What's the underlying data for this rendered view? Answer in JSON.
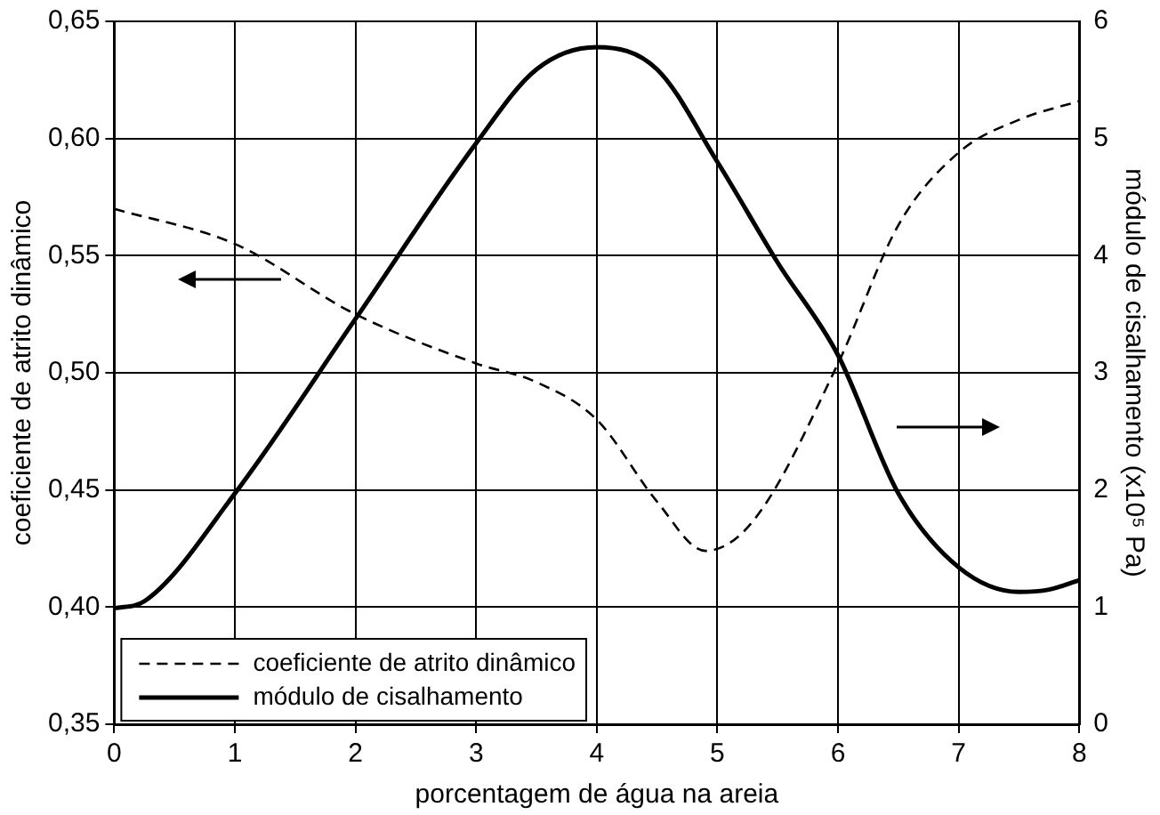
{
  "chart_data": {
    "type": "line",
    "xlabel": "porcentagem de água na areia",
    "ylabel": "coeficiente de atrito dinâmico",
    "y2label": "módulo de cisalhamento (x10⁵ Pa)",
    "xlim": [
      0,
      8
    ],
    "xticks": [
      0,
      1,
      2,
      3,
      4,
      5,
      6,
      7,
      8
    ],
    "ylim": [
      0.35,
      0.65
    ],
    "yticks": [
      {
        "value": 0.35,
        "label": "0,35"
      },
      {
        "value": 0.4,
        "label": "0,40"
      },
      {
        "value": 0.45,
        "label": "0,45"
      },
      {
        "value": 0.5,
        "label": "0,50"
      },
      {
        "value": 0.55,
        "label": "0,55"
      },
      {
        "value": 0.6,
        "label": "0,60"
      },
      {
        "value": 0.65,
        "label": "0,65"
      }
    ],
    "y2lim": [
      0,
      6
    ],
    "y2ticks": [
      0,
      1,
      2,
      3,
      4,
      5,
      6
    ],
    "grid": true,
    "legend": "bottom left",
    "marker": "none",
    "series": [
      {
        "name": "coeficiente de atrito dinâmico",
        "color": "#000000",
        "line_style": "dashed",
        "axis": "y",
        "x": [
          0,
          1,
          2,
          3,
          3.5,
          4,
          4.5,
          4.9,
          5.3,
          6,
          6.5,
          7,
          7.5,
          8
        ],
        "values": [
          0.57,
          0.555,
          0.525,
          0.504,
          0.496,
          0.48,
          0.445,
          0.424,
          0.437,
          0.504,
          0.563,
          0.594,
          0.608,
          0.616
        ]
      },
      {
        "name": "módulo de cisalhamento",
        "color": "#000000",
        "line_style": "solid",
        "axis": "y2",
        "x": [
          0,
          0.25,
          1,
          2,
          3,
          3.5,
          4,
          4.5,
          5,
          5.5,
          6,
          6.5,
          7,
          7.5,
          7.75,
          8
        ],
        "values": [
          0.99,
          1.05,
          1.97,
          3.46,
          4.96,
          5.59,
          5.78,
          5.59,
          4.8,
          3.94,
          3.15,
          1.97,
          1.34,
          1.13,
          1.15,
          1.23
        ]
      }
    ]
  }
}
